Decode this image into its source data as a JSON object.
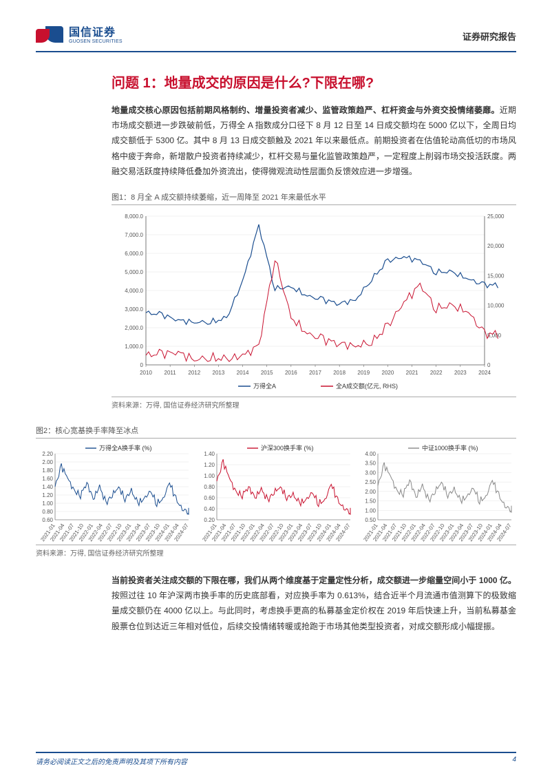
{
  "header": {
    "company_cn": "国信证券",
    "company_en": "GUOSEN SECURITIES",
    "report_type": "证券研究报告"
  },
  "title": "问题 1：地量成交的原因是什么?下限在哪?",
  "paragraph1": {
    "bold_lead": "地量成交核心原因包括前期风格制约、增量投资者减少、监管政策趋严、杠杆资金与外资交投情绪萎靡。",
    "rest": "近期市场成交额进一步跌破前低，万得全 A 指数成分口径下 8 月 12 日至 14 日成交额均在 5000 亿以下，全周日均成交额低于 5300 亿。其中 8 月 13 日成交额触及 2021 年以来最低点。前期投资者在估值轮动高低切的市场风格中疲于奔命，新增散户投资者持续减少，杠杆交易与量化监管政策趋严，一定程度上削弱市场交投活跃度。两融交易活跃度持续降低叠加外资流出，使得微观流动性层面负反馈效应进一步增强。"
  },
  "figure1": {
    "caption": "图1：8 月全 A 成交额持续萎缩，近一周降至 2021 年来最低水平",
    "source": "资料来源：万得, 国信证券经济研究所整理",
    "series": [
      {
        "name": "万得全A",
        "color": "#1a4d8f"
      },
      {
        "name": "全A成交额(亿元, RHS)",
        "color": "#c8102e"
      }
    ],
    "y_left": {
      "min": 0,
      "max": 8000,
      "ticks": [
        0,
        "1,000.0",
        "2,000.0",
        "3,000.0",
        "4,000.0",
        "5,000.0",
        "6,000.0",
        "7,000.0",
        "8,000.0"
      ]
    },
    "y_right": {
      "min": 0,
      "max": 25000,
      "ticks": [
        0,
        "5,000",
        "10,000",
        "15,000",
        "20,000",
        "25,000"
      ]
    },
    "x_labels": [
      "2010",
      "2011",
      "2012",
      "2013",
      "2014",
      "2015",
      "2016",
      "2017",
      "2018",
      "2019",
      "2020",
      "2021",
      "2022",
      "2023",
      "2024"
    ],
    "blue_points": [
      2800,
      2700,
      2400,
      2300,
      2300,
      2500,
      4500,
      7500,
      4100,
      4200,
      3700,
      3500,
      3300,
      3500,
      4600,
      5600,
      5800,
      5600,
      5000,
      5000,
      4600,
      4300
    ],
    "red_points": [
      1600,
      1900,
      2100,
      900,
      1200,
      900,
      1500,
      3200,
      18000,
      8000,
      5200,
      4300,
      3600,
      3200,
      3800,
      6500,
      10500,
      13500,
      9500,
      10000,
      8800,
      5200
    ]
  },
  "figure2": {
    "caption": "图2：核心宽基换手率降至冰点",
    "source": "资料来源：万得, 国信证券经济研究所整理",
    "x_labels": [
      "2021-01",
      "2021-04",
      "2021-07",
      "2021-10",
      "2022-01",
      "2022-04",
      "2022-07",
      "2022-10",
      "2023-01",
      "2023-04",
      "2023-07",
      "2023-10",
      "2024-01",
      "2024-04",
      "2024-07"
    ],
    "panels": [
      {
        "legend": "万得全A换手率 (%)",
        "color": "#1a4d8f",
        "y_ticks": [
          "0.60",
          "0.80",
          "1.00",
          "1.20",
          "1.40",
          "1.60",
          "1.80",
          "2.00",
          "2.20"
        ],
        "y_min": 0.6,
        "y_max": 2.2,
        "values": [
          1.4,
          1.9,
          1.6,
          1.3,
          1.2,
          1.5,
          1.1,
          1.4,
          1.0,
          1.2,
          1.4,
          1.1,
          1.3,
          1.0,
          1.1,
          1.3,
          1.0,
          1.1,
          1.5,
          1.1,
          0.85,
          0.8
        ]
      },
      {
        "legend": "沪深300换手率 (%)",
        "color": "#c8102e",
        "y_ticks": [
          "0.20",
          "0.40",
          "0.60",
          "0.80",
          "1.00",
          "1.20",
          "1.40"
        ],
        "y_min": 0.2,
        "y_max": 1.4,
        "values": [
          0.9,
          1.25,
          0.95,
          0.7,
          0.65,
          0.8,
          0.6,
          0.75,
          0.55,
          0.7,
          0.8,
          0.6,
          0.65,
          0.5,
          0.55,
          0.7,
          0.5,
          0.55,
          0.85,
          0.55,
          0.4,
          0.35
        ]
      },
      {
        "legend": "中证1000换手率 (%)",
        "color": "#888888",
        "y_ticks": [
          "0.50",
          "1.00",
          "1.50",
          "2.00",
          "2.50",
          "3.00",
          "3.50",
          "4.00"
        ],
        "y_min": 0.5,
        "y_max": 4.0,
        "values": [
          2.3,
          3.4,
          2.8,
          2.0,
          1.9,
          2.6,
          1.7,
          2.3,
          1.5,
          2.0,
          2.5,
          1.8,
          2.1,
          1.5,
          1.7,
          2.2,
          1.5,
          1.7,
          2.6,
          1.8,
          1.2,
          1.05
        ]
      }
    ]
  },
  "paragraph2": {
    "bold_lead": "当前投资者关注成交额的下限在哪，我们从两个维度基于定量定性分析，成交额进一步缩量空间小于 1000 亿。",
    "rest": "按照过往 10 年沪深两市换手率的历史底部看，对应换手率为 0.613%，结合近半个月流通市值测算下的极致缩量成交额仍在 4000 亿以上。与此同时，考虑换手更高的私募基金定价权在 2019 年后快速上升，当前私募基金股票仓位到达近三年相对低位，后续交投情绪转暖或抢跑于市场其他类型投资者，对成交额形成小幅提振。"
  },
  "footer": {
    "disclaimer": "请务必阅读正文之后的免责声明及其项下所有内容",
    "page": "4"
  },
  "colors": {
    "brand_blue": "#1a4d8f",
    "brand_red": "#c8102e",
    "grid": "#e5e5e5",
    "axis": "#555555",
    "gray_series": "#888888"
  }
}
